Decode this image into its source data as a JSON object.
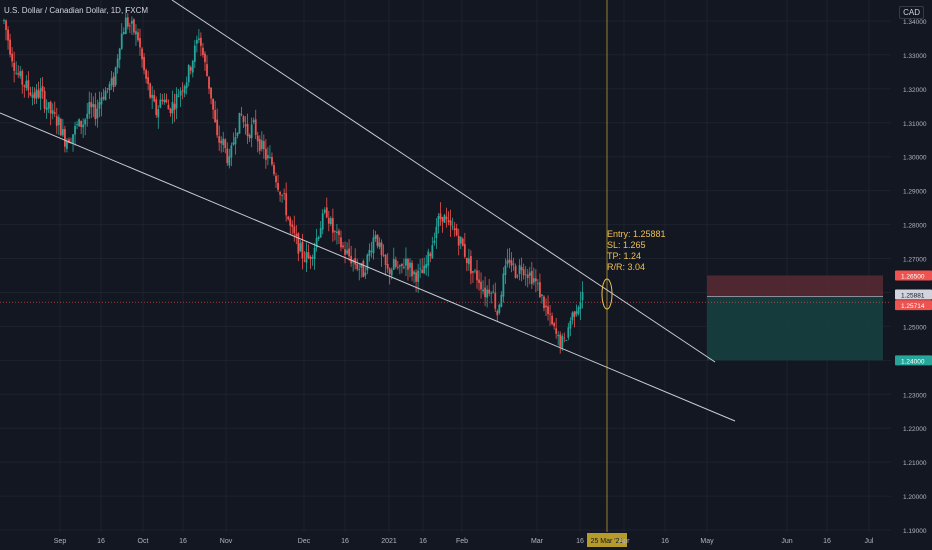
{
  "header": {
    "symbol_title": "U.S. Dollar / Canadian Dollar, 1D, FXCM",
    "currency": "CAD"
  },
  "annotation": {
    "entry": "Entry: 1.25881",
    "sl": "SL: 1.265",
    "tp": "TP: 1.24",
    "rr": "R/R: 3.04"
  },
  "price_tags": [
    {
      "label": "1.26500",
      "color": "#ef5350"
    },
    {
      "label": "1.25881",
      "color": "#d1d4dc"
    },
    {
      "label": "1.25714",
      "color": "#ef5350"
    },
    {
      "label": "1.24000",
      "color": "#26a69a"
    }
  ],
  "crosshair_date": "25 Mar '21",
  "chart_data": {
    "type": "candlestick",
    "title": "U.S. Dollar / Canadian Dollar, 1D, FXCM",
    "y_axis_ticks": [
      "1.34000",
      "1.33000",
      "1.32000",
      "1.31000",
      "1.30000",
      "1.29000",
      "1.28000",
      "1.27000",
      "1.26000",
      "1.25000",
      "1.24000",
      "1.23000",
      "1.22000",
      "1.21000",
      "1.20000",
      "1.19000"
    ],
    "x_axis_ticks": [
      "Sep",
      "16",
      "Oct",
      "16",
      "Nov",
      "Dec",
      "16",
      "2021",
      "16",
      "Feb",
      "Mar",
      "16",
      "25 Mar '21",
      "Apr",
      "16",
      "May",
      "Jun",
      "16",
      "Jul"
    ],
    "ylim": [
      1.188,
      1.345
    ],
    "entry": 1.25881,
    "stop_loss": 1.265,
    "take_profit": 1.24,
    "last_price": 1.25714,
    "risk_reward": 3.04,
    "close_path": [
      [
        0,
        1.34
      ],
      [
        3,
        1.332
      ],
      [
        6,
        1.325
      ],
      [
        9,
        1.322
      ],
      [
        12,
        1.32
      ],
      [
        15,
        1.318
      ],
      [
        18,
        1.319
      ],
      [
        21,
        1.315
      ],
      [
        24,
        1.312
      ],
      [
        27,
        1.31
      ],
      [
        30,
        1.305
      ],
      [
        33,
        1.306
      ],
      [
        36,
        1.309
      ],
      [
        39,
        1.31
      ],
      [
        42,
        1.314
      ],
      [
        45,
        1.313
      ],
      [
        48,
        1.318
      ],
      [
        51,
        1.32
      ],
      [
        54,
        1.322
      ],
      [
        57,
        1.334
      ],
      [
        60,
        1.34
      ],
      [
        63,
        1.338
      ],
      [
        66,
        1.335
      ],
      [
        69,
        1.325
      ],
      [
        72,
        1.318
      ],
      [
        75,
        1.313
      ],
      [
        78,
        1.318
      ],
      [
        81,
        1.314
      ],
      [
        84,
        1.316
      ],
      [
        87,
        1.32
      ],
      [
        90,
        1.323
      ],
      [
        93,
        1.329
      ],
      [
        96,
        1.336
      ],
      [
        99,
        1.327
      ],
      [
        102,
        1.318
      ],
      [
        105,
        1.305
      ],
      [
        108,
        1.304
      ],
      [
        111,
        1.298
      ],
      [
        114,
        1.308
      ],
      [
        117,
        1.312
      ],
      [
        120,
        1.307
      ],
      [
        123,
        1.309
      ],
      [
        126,
        1.304
      ],
      [
        129,
        1.3
      ],
      [
        132,
        1.298
      ],
      [
        135,
        1.292
      ],
      [
        138,
        1.287
      ],
      [
        141,
        1.279
      ],
      [
        144,
        1.275
      ],
      [
        147,
        1.271
      ],
      [
        150,
        1.27
      ],
      [
        153,
        1.274
      ],
      [
        156,
        1.28
      ],
      [
        159,
        1.284
      ],
      [
        162,
        1.278
      ],
      [
        165,
        1.275
      ],
      [
        168,
        1.272
      ],
      [
        171,
        1.27
      ],
      [
        174,
        1.268
      ],
      [
        177,
        1.266
      ],
      [
        180,
        1.272
      ],
      [
        183,
        1.278
      ],
      [
        186,
        1.27
      ],
      [
        189,
        1.266
      ],
      [
        192,
        1.268
      ],
      [
        195,
        1.266
      ],
      [
        198,
        1.27
      ],
      [
        201,
        1.266
      ],
      [
        204,
        1.265
      ],
      [
        207,
        1.266
      ],
      [
        210,
        1.272
      ],
      [
        213,
        1.28
      ],
      [
        216,
        1.283
      ],
      [
        219,
        1.279
      ],
      [
        222,
        1.278
      ],
      [
        225,
        1.275
      ],
      [
        228,
        1.27
      ],
      [
        231,
        1.266
      ],
      [
        234,
        1.264
      ],
      [
        237,
        1.26
      ],
      [
        240,
        1.262
      ],
      [
        243,
        1.254
      ],
      [
        246,
        1.264
      ],
      [
        249,
        1.27
      ],
      [
        252,
        1.266
      ],
      [
        255,
        1.268
      ],
      [
        258,
        1.266
      ],
      [
        261,
        1.264
      ],
      [
        264,
        1.26
      ],
      [
        267,
        1.255
      ],
      [
        270,
        1.25
      ],
      [
        273,
        1.246
      ],
      [
        276,
        1.245
      ],
      [
        279,
        1.252
      ],
      [
        282,
        1.256
      ],
      [
        285,
        1.259
      ]
    ],
    "trendlines": [
      {
        "name": "upper",
        "from": [
          47,
          1.345
        ],
        "to": [
          210,
          1.24
        ]
      },
      {
        "name": "lower",
        "from": [
          0,
          1.312
        ],
        "to": [
          214,
          1.22
        ]
      }
    ]
  }
}
